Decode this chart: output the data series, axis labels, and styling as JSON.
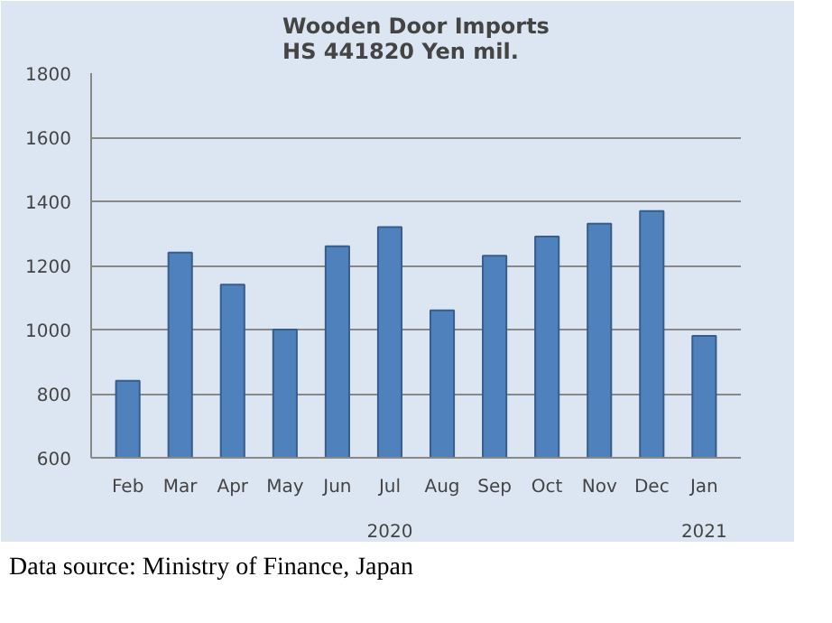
{
  "chart_data": {
    "type": "bar",
    "title": "Wooden Door Imports\nHS 441820  Yen mil.",
    "categories": [
      "Feb",
      "Mar",
      "Apr",
      "May",
      "Jun",
      "Jul",
      "Aug",
      "Sep",
      "Oct",
      "Nov",
      "Dec",
      "Jan"
    ],
    "values": [
      840,
      1240,
      1140,
      1000,
      1260,
      1320,
      1060,
      1230,
      1290,
      1330,
      1370,
      980
    ],
    "color": "#4f81bd",
    "ylim": [
      600,
      1800
    ],
    "yticks": [
      600,
      800,
      1000,
      1200,
      1400,
      1600,
      1800
    ],
    "grid": "y",
    "annotations": [
      "2020",
      "2021",
      "Data source: Ministry of Finance, Japan"
    ]
  }
}
